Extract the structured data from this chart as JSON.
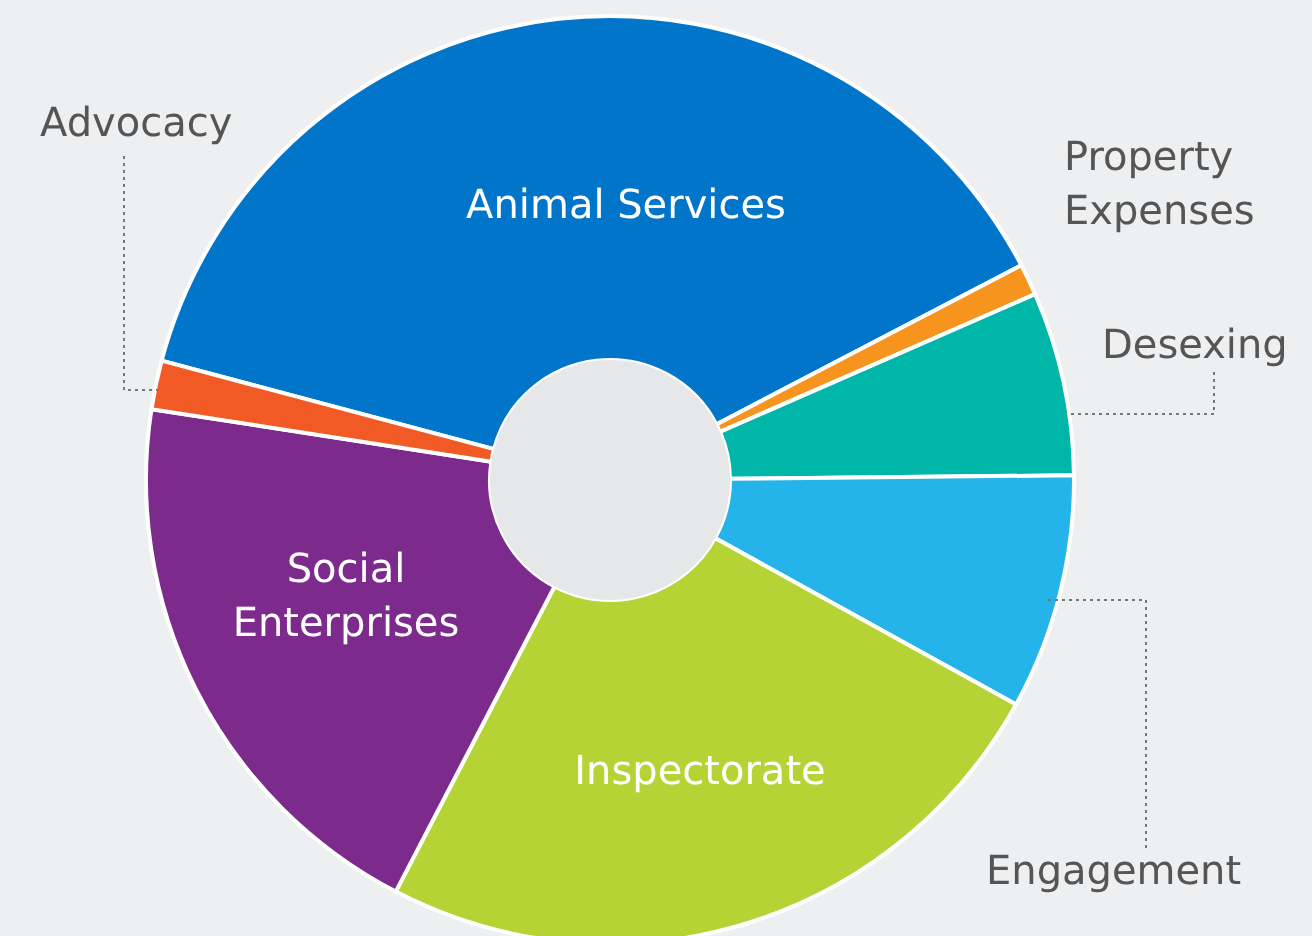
{
  "chart_data": {
    "type": "donut",
    "categories": [
      "Animal Services",
      "Property Expenses",
      "Desexing",
      "Engagement",
      "Inspectorate",
      "Social Enterprises",
      "Advocacy"
    ],
    "values": [
      38.2,
      1.1,
      6.4,
      8.2,
      24.6,
      19.8,
      1.7
    ],
    "colors": [
      "#0075c9",
      "#f7941d",
      "#00b6a9",
      "#25b4e9",
      "#b5d334",
      "#7c2a8c",
      "#f15a24"
    ]
  }
}
